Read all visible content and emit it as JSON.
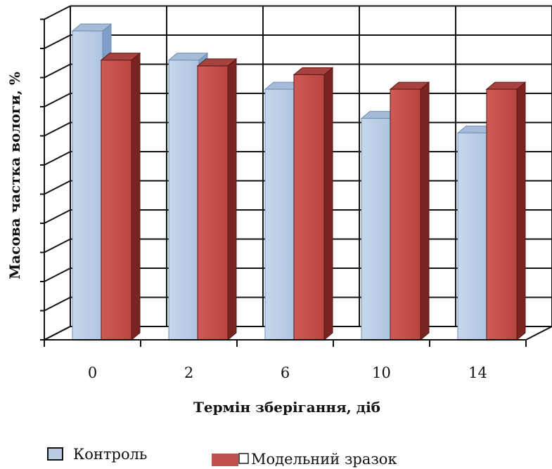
{
  "chart_data": {
    "type": "bar",
    "title": "",
    "xlabel": "Термін зберігання, діб",
    "ylabel": "Масова частка вологи, %",
    "categories": [
      "0",
      "2",
      "6",
      "10",
      "14"
    ],
    "series": [
      {
        "name": "Контроль",
        "values": [
          10.6,
          9.6,
          8.6,
          7.6,
          7.1
        ],
        "color": "#b8cce4"
      },
      {
        "name": "Модельний зразок",
        "values": [
          9.6,
          9.4,
          9.1,
          8.6,
          8.6
        ],
        "color": "#c0504d"
      }
    ],
    "ylim": [
      0,
      11
    ],
    "y_tick_labels_shown": false,
    "grid": true,
    "legend_position": "bottom",
    "chart_style": "3d-clustered-column"
  }
}
